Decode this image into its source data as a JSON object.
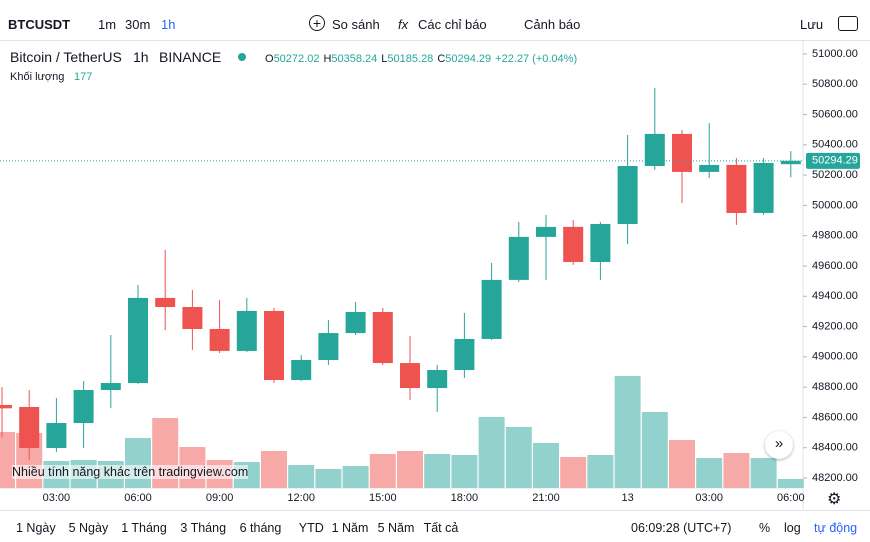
{
  "toolbar": {
    "symbol": "BTCUSDT",
    "intervals": [
      "1m",
      "30m",
      "1h"
    ],
    "compare": "So sánh",
    "indicators": "Các chỉ báo",
    "alerts": "Cảnh báo",
    "save": "Lưu"
  },
  "footer": {
    "ranges": [
      "1 Ngày",
      "5 Ngày",
      "1 Tháng",
      "3 Tháng",
      "6 tháng",
      "YTD",
      "1 Năm",
      "5 Năm",
      "Tất cả"
    ],
    "clock": "06:09:28 (UTC+7)",
    "percent": "%",
    "log": "log",
    "auto": "tự động"
  },
  "watermark": "Nhiều tính năng khác trên tradingview.com",
  "chart_data": {
    "type": "candlestick",
    "title": "Bitcoin / TetherUS",
    "interval": "1h",
    "exchange": "BINANCE",
    "ohlc_letters": [
      "O",
      "H",
      "L",
      "C"
    ],
    "change_label": "+22.27 (+0.04%)",
    "volume_label": "Khối lượng",
    "categories": [
      null,
      null,
      "03:00",
      null,
      null,
      "06:00",
      null,
      null,
      "09:00",
      null,
      null,
      "12:00",
      null,
      null,
      "15:00",
      null,
      null,
      "18:00",
      null,
      null,
      "21:00",
      null,
      null,
      "13",
      null,
      null,
      "03:00",
      null,
      null,
      "06:00"
    ],
    "open": [
      48682,
      48669,
      48398,
      48563,
      48781,
      48827,
      49389,
      49329,
      49184,
      49039,
      49303,
      48847,
      48979,
      49157,
      49296,
      48959,
      48794,
      48913,
      49118,
      49508,
      49792,
      49858,
      49626,
      49877,
      50260,
      50472,
      50221,
      50267,
      49950,
      50272.02
    ],
    "high": [
      48800,
      48781,
      48728,
      48840,
      49144,
      49474,
      49706,
      49441,
      49375,
      49389,
      49323,
      49012,
      49243,
      49362,
      49323,
      49138,
      48946,
      49290,
      49620,
      49891,
      49937,
      49904,
      49891,
      50465,
      50775,
      50498,
      50544,
      50313,
      50313,
      50358.24
    ],
    "low": [
      48470,
      48319,
      48372,
      48398,
      48662,
      48820,
      49177,
      49045,
      49025,
      49032,
      48827,
      48840,
      48946,
      49144,
      48946,
      48715,
      48636,
      48860,
      49111,
      49494,
      49508,
      49607,
      49508,
      49745,
      50234,
      50016,
      50181,
      49871,
      49937,
      50185.28
    ],
    "close": [
      48660,
      48398,
      48563,
      48781,
      48827,
      49389,
      49329,
      49184,
      49039,
      49303,
      48847,
      48979,
      49157,
      49296,
      48959,
      48794,
      48913,
      49118,
      49508,
      49792,
      49858,
      49626,
      49877,
      50260,
      50472,
      50221,
      50267,
      49950,
      50280,
      50294.29
    ],
    "volume": [
      1102,
      1082,
      531,
      551,
      531,
      983,
      1377,
      806,
      551,
      511,
      728,
      452,
      374,
      433,
      669,
      728,
      669,
      649,
      1397,
      1200,
      885,
      610,
      649,
      2203,
      1495,
      944,
      590,
      688,
      590,
      177
    ],
    "up_color": "#26a69a",
    "down_color": "#ef5350",
    "volume_up_color": "#93d2cc",
    "volume_down_color": "#f7a9a7",
    "ylim": [
      48134,
      51092
    ],
    "yticks": [
      {
        "value": 48200,
        "label": "48200.00"
      },
      {
        "value": 48400,
        "label": "48400.00"
      },
      {
        "value": 48600,
        "label": "48600.00"
      },
      {
        "value": 48800,
        "label": "48800.00"
      },
      {
        "value": 49000,
        "label": "49000.00"
      },
      {
        "value": 49200,
        "label": "49200.00"
      },
      {
        "value": 49400,
        "label": "49400.00"
      },
      {
        "value": 49600,
        "label": "49600.00"
      },
      {
        "value": 49800,
        "label": "49800.00"
      },
      {
        "value": 50000,
        "label": "50000.00"
      },
      {
        "value": 50200,
        "label": "50200.00"
      },
      {
        "value": 50400,
        "label": "50400.00"
      },
      {
        "value": 50600,
        "label": "50600.00"
      },
      {
        "value": 50800,
        "label": "50800.00"
      },
      {
        "value": 51000,
        "label": "51000.00"
      }
    ],
    "grid": false
  }
}
